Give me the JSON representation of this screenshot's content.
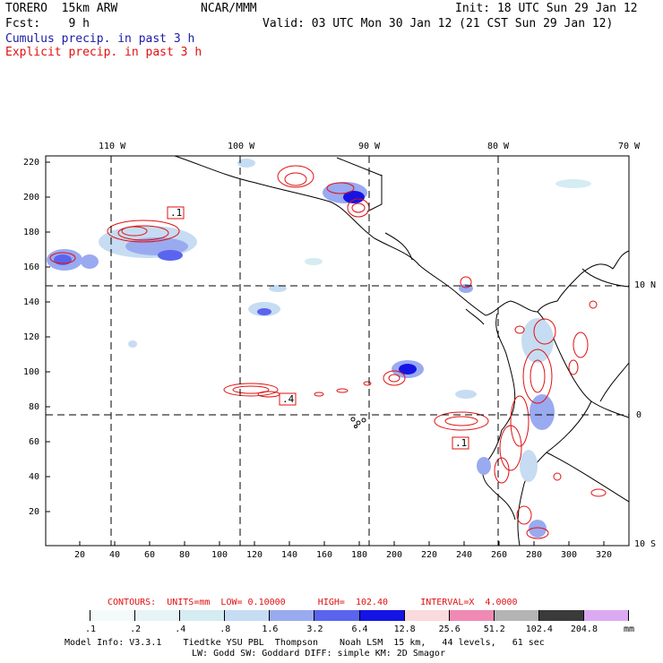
{
  "header": {
    "model": "TORERO  15km ARW",
    "org": "NCAR/MMM",
    "init": "Init: 18 UTC Sun 29 Jan 12",
    "fcst": "Fcst:    9 h",
    "valid": "Valid: 03 UTC Mon 30 Jan 12 (21 CST Sun 29 Jan 12)",
    "field1": "Cumulus precip. in past 3 h",
    "field2": "Explicit precip. in past 3 h",
    "field1_color": "#1a1aa8",
    "field2_color": "#e01010"
  },
  "map": {
    "top_lon_labels": [
      "110 W",
      "100 W",
      "90 W",
      "80 W",
      "70 W"
    ],
    "right_lat_labels": [
      "10 N",
      "0",
      "10 S"
    ],
    "y_ticks": [
      "220",
      "200",
      "180",
      "160",
      "140",
      "120",
      "100",
      "80",
      "60",
      "40",
      "20"
    ],
    "x_ticks": [
      "20",
      "40",
      "60",
      "80",
      "100",
      "120",
      "140",
      "160",
      "180",
      "200",
      "220",
      "240",
      "260",
      "280",
      "300",
      "320"
    ],
    "contour_labels": [
      ".1",
      ".4",
      ".1"
    ]
  },
  "contours": {
    "label": "CONTOURS:  UNITS=mm  LOW= 0.10000      HIGH=  102.40      INTERVAL=X  4.0000"
  },
  "colorbar": {
    "units": "mm",
    "labels": [
      ".1",
      ".2",
      ".4",
      ".8",
      "1.6",
      "3.2",
      "6.4",
      "12.8",
      "25.6",
      "51.2",
      "102.4",
      "204.8"
    ],
    "colors": [
      "#ffffff",
      "#f4fafa",
      "#e6f4f6",
      "#d4ecf2",
      "#c6dcf2",
      "#9aaaf0",
      "#5a64ee",
      "#1414e4",
      "#fadadc",
      "#f08ab4",
      "#b4b4b4",
      "#3a3a3a",
      "#dcaaf2"
    ]
  },
  "footer": {
    "line1": "Model Info: V3.3.1    Tiedtke YSU PBL  Thompson    Noah LSM  15 km,   44 levels,   61 sec",
    "line2": "LW: Godd SW: Goddard DIFF: simple KM: 2D Smagor"
  }
}
